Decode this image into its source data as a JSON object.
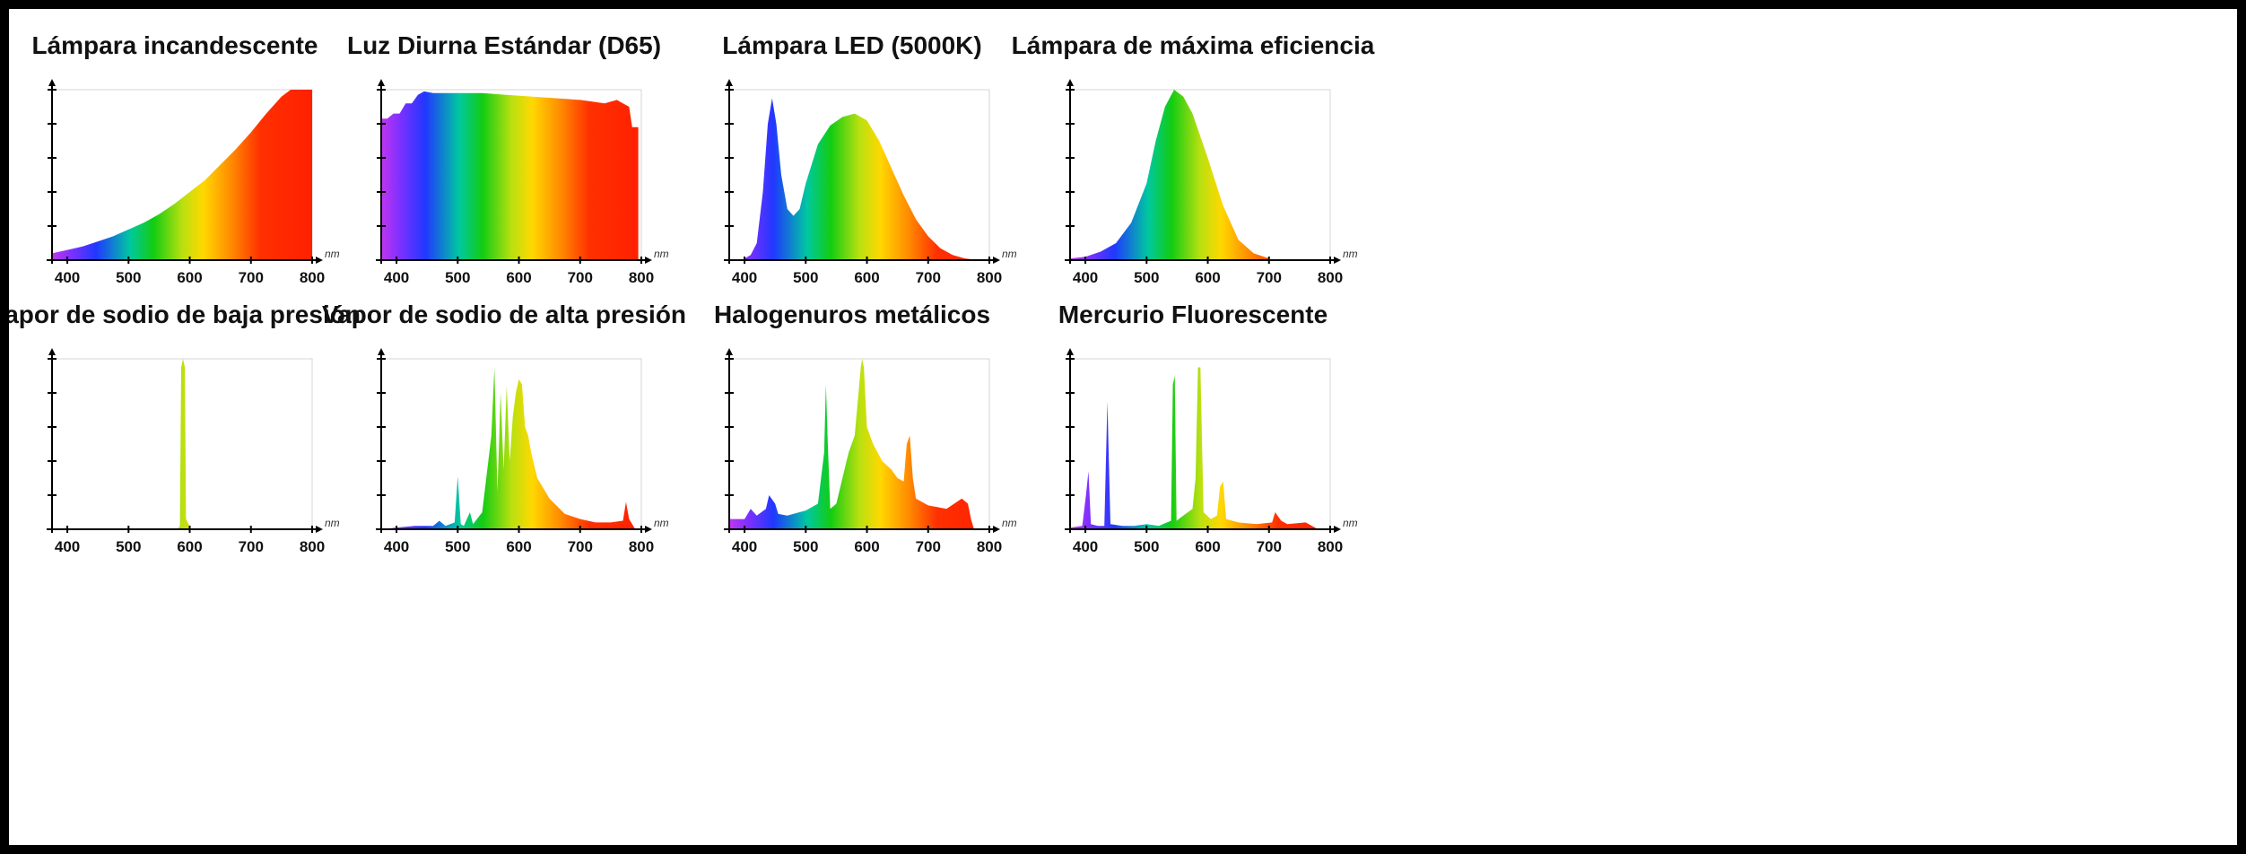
{
  "chart_data": [
    {
      "type": "area",
      "title": "Lámpara incandescente",
      "xunit": "nm",
      "xlim": [
        375,
        800
      ],
      "ylim": [
        0,
        1
      ],
      "xticks": [
        400,
        500,
        600,
        700,
        800
      ],
      "x": [
        375,
        400,
        425,
        450,
        475,
        500,
        525,
        550,
        575,
        600,
        625,
        650,
        675,
        700,
        725,
        750,
        765,
        800
      ],
      "y": [
        0.04,
        0.06,
        0.08,
        0.11,
        0.14,
        0.18,
        0.22,
        0.27,
        0.33,
        0.4,
        0.47,
        0.56,
        0.65,
        0.75,
        0.86,
        0.96,
        1.0,
        1.0
      ]
    },
    {
      "type": "area",
      "title": "Luz Diurna Estándar (D65)",
      "xunit": "nm",
      "xlim": [
        375,
        800
      ],
      "ylim": [
        0,
        1
      ],
      "xticks": [
        400,
        500,
        600,
        700,
        800
      ],
      "x": [
        375,
        385,
        395,
        405,
        415,
        425,
        435,
        445,
        460,
        500,
        540,
        580,
        620,
        660,
        700,
        720,
        740,
        760,
        770,
        780,
        785,
        790,
        795
      ],
      "y": [
        0.83,
        0.83,
        0.86,
        0.86,
        0.92,
        0.92,
        0.97,
        0.99,
        0.98,
        0.98,
        0.98,
        0.97,
        0.96,
        0.95,
        0.94,
        0.93,
        0.92,
        0.94,
        0.92,
        0.9,
        0.78,
        0.78,
        0.78
      ]
    },
    {
      "type": "area",
      "title": "Lámpara LED (5000K)",
      "xunit": "nm",
      "xlim": [
        375,
        800
      ],
      "ylim": [
        0,
        1
      ],
      "xticks": [
        400,
        500,
        600,
        700,
        800
      ],
      "x": [
        400,
        410,
        420,
        430,
        438,
        445,
        452,
        460,
        470,
        480,
        490,
        500,
        520,
        540,
        560,
        580,
        600,
        620,
        640,
        660,
        680,
        700,
        720,
        740,
        760,
        780
      ],
      "y": [
        0.01,
        0.03,
        0.1,
        0.4,
        0.8,
        0.95,
        0.8,
        0.5,
        0.3,
        0.26,
        0.3,
        0.45,
        0.68,
        0.79,
        0.84,
        0.86,
        0.82,
        0.7,
        0.54,
        0.38,
        0.24,
        0.14,
        0.07,
        0.03,
        0.01,
        0.0
      ]
    },
    {
      "type": "area",
      "title": "Lámpara de máxima eficiencia",
      "xunit": "nm",
      "xlim": [
        375,
        800
      ],
      "ylim": [
        0,
        1
      ],
      "xticks": [
        400,
        500,
        600,
        700,
        800
      ],
      "x": [
        375,
        400,
        425,
        450,
        475,
        500,
        515,
        530,
        545,
        560,
        575,
        600,
        625,
        650,
        675,
        700
      ],
      "y": [
        0.01,
        0.02,
        0.05,
        0.1,
        0.22,
        0.45,
        0.7,
        0.9,
        1.0,
        0.96,
        0.86,
        0.6,
        0.32,
        0.12,
        0.04,
        0.01
      ]
    },
    {
      "type": "area",
      "title": "Vapor de sodio de baja presión",
      "xunit": "nm",
      "xlim": [
        375,
        800
      ],
      "ylim": [
        0,
        1
      ],
      "xticks": [
        400,
        500,
        600,
        700,
        800
      ],
      "x": [
        580,
        584,
        586,
        589,
        592,
        594,
        598,
        602
      ],
      "y": [
        0.0,
        0.02,
        0.95,
        1.0,
        0.95,
        0.06,
        0.03,
        0.0
      ]
    },
    {
      "type": "area",
      "title": "Vapor de sodio de alta presión",
      "xunit": "nm",
      "xlim": [
        375,
        800
      ],
      "ylim": [
        0,
        1
      ],
      "xticks": [
        400,
        500,
        600,
        700,
        800
      ],
      "x": [
        375,
        400,
        430,
        460,
        470,
        480,
        495,
        500,
        505,
        510,
        515,
        520,
        525,
        540,
        555,
        560,
        565,
        570,
        575,
        580,
        585,
        590,
        595,
        600,
        605,
        610,
        615,
        620,
        630,
        650,
        675,
        700,
        725,
        750,
        770,
        775,
        780,
        785,
        790
      ],
      "y": [
        0.0,
        0.01,
        0.02,
        0.02,
        0.05,
        0.02,
        0.04,
        0.31,
        0.03,
        0.02,
        0.06,
        0.1,
        0.03,
        0.1,
        0.55,
        0.95,
        0.22,
        0.8,
        0.35,
        0.84,
        0.4,
        0.66,
        0.8,
        0.88,
        0.85,
        0.6,
        0.55,
        0.45,
        0.3,
        0.18,
        0.09,
        0.06,
        0.04,
        0.04,
        0.05,
        0.16,
        0.06,
        0.03,
        0.0
      ]
    },
    {
      "type": "area",
      "title": "Halogenuros metálicos",
      "xunit": "nm",
      "xlim": [
        375,
        800
      ],
      "ylim": [
        0,
        1
      ],
      "xticks": [
        400,
        500,
        600,
        700,
        800
      ],
      "x": [
        375,
        400,
        410,
        420,
        435,
        440,
        450,
        455,
        470,
        500,
        520,
        530,
        533,
        536,
        540,
        550,
        560,
        570,
        580,
        590,
        592,
        595,
        600,
        610,
        625,
        640,
        650,
        660,
        665,
        670,
        675,
        680,
        700,
        730,
        755,
        765,
        770,
        775
      ],
      "y": [
        0.06,
        0.06,
        0.12,
        0.08,
        0.12,
        0.2,
        0.15,
        0.09,
        0.08,
        0.11,
        0.15,
        0.45,
        0.85,
        0.5,
        0.12,
        0.15,
        0.3,
        0.45,
        0.55,
        0.95,
        1.0,
        0.95,
        0.6,
        0.5,
        0.4,
        0.35,
        0.3,
        0.28,
        0.5,
        0.55,
        0.3,
        0.18,
        0.14,
        0.12,
        0.18,
        0.15,
        0.06,
        0.0
      ]
    },
    {
      "type": "area",
      "title": "Mercurio Fluorescente",
      "xunit": "nm",
      "xlim": [
        375,
        800
      ],
      "ylim": [
        0,
        1
      ],
      "xticks": [
        400,
        500,
        600,
        700,
        800
      ],
      "x": [
        375,
        395,
        401,
        405,
        409,
        420,
        431,
        436,
        441,
        460,
        480,
        500,
        520,
        540,
        543,
        546,
        549,
        560,
        575,
        580,
        584,
        588,
        593,
        605,
        615,
        620,
        625,
        630,
        650,
        680,
        705,
        710,
        720,
        730,
        760,
        780
      ],
      "y": [
        0.01,
        0.02,
        0.2,
        0.34,
        0.03,
        0.02,
        0.02,
        0.75,
        0.03,
        0.02,
        0.02,
        0.03,
        0.02,
        0.05,
        0.85,
        0.9,
        0.05,
        0.08,
        0.12,
        0.3,
        0.95,
        0.95,
        0.1,
        0.06,
        0.08,
        0.25,
        0.28,
        0.06,
        0.04,
        0.03,
        0.04,
        0.1,
        0.05,
        0.03,
        0.04,
        0.0
      ]
    }
  ]
}
